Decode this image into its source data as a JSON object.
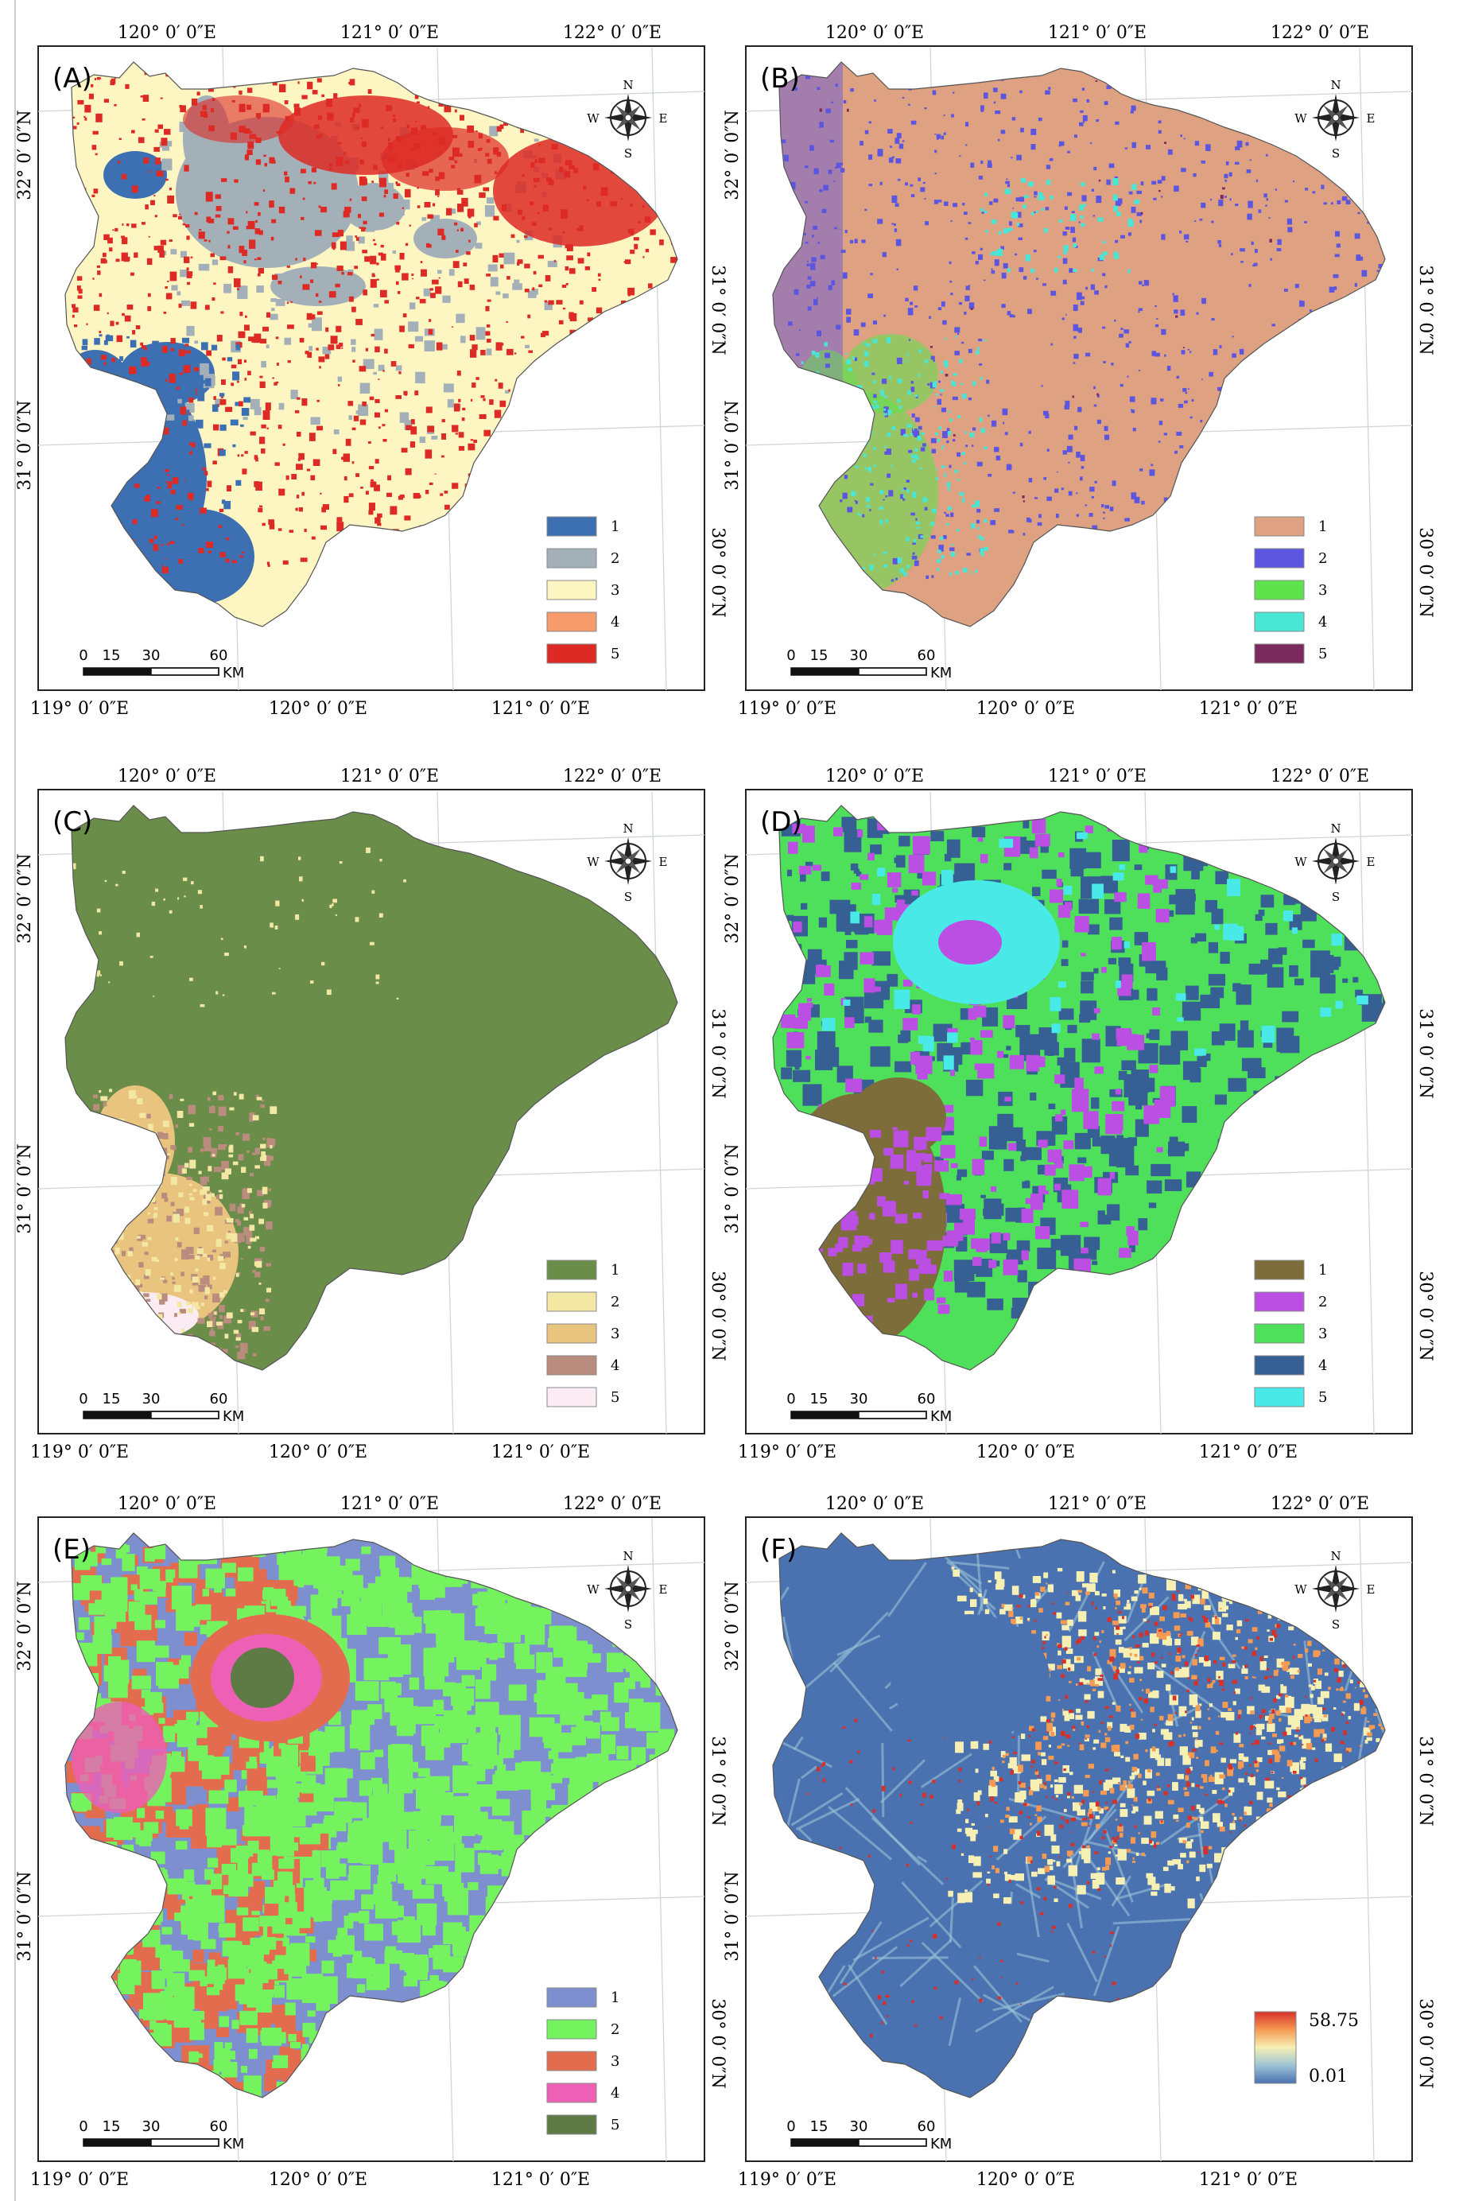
{
  "panels": [
    {
      "id": "A",
      "label": "(A)",
      "lon_top": [
        "120° 0′ 0″E",
        "121° 0′ 0″E",
        "122° 0′ 0″E"
      ],
      "lon_bottom": [
        "119° 0′ 0″E",
        "120° 0′ 0″E",
        "121° 0′ 0″E"
      ],
      "lat_left": [
        "32° 0′ 0″N",
        "31° 0′ 0″N"
      ],
      "lat_right": [
        "31° 0′ 0″N",
        "30° 0′ 0″N"
      ],
      "scale": {
        "ticks": [
          "0",
          "15",
          "30",
          "60"
        ],
        "unit": "KM"
      },
      "compass": {
        "n": "N",
        "s": "S",
        "e": "E",
        "w": "W"
      },
      "legend": {
        "items": [
          {
            "label": "1",
            "color": "#3d6fb3"
          },
          {
            "label": "2",
            "color": "#a4b0b8"
          },
          {
            "label": "3",
            "color": "#fdf6c3"
          },
          {
            "label": "4",
            "color": "#f79a6c"
          },
          {
            "label": "5",
            "color": "#dd2a24"
          }
        ]
      }
    },
    {
      "id": "B",
      "label": "(B)",
      "lon_top": [
        "120° 0′ 0″E",
        "121° 0′ 0″E",
        "122° 0′ 0″E"
      ],
      "lon_bottom": [
        "119° 0′ 0″E",
        "120° 0′ 0″E",
        "121° 0′ 0″E"
      ],
      "lat_left": [
        "32° 0′ 0″N",
        "31° 0′ 0″N"
      ],
      "lat_right": [
        "31° 0′ 0″N",
        "30° 0′ 0″N"
      ],
      "scale": {
        "ticks": [
          "0",
          "15",
          "30",
          "60"
        ],
        "unit": "KM"
      },
      "compass": {
        "n": "N",
        "s": "S",
        "e": "E",
        "w": "W"
      },
      "legend": {
        "items": [
          {
            "label": "1",
            "color": "#dea181"
          },
          {
            "label": "2",
            "color": "#5c55e0"
          },
          {
            "label": "3",
            "color": "#5ee34d"
          },
          {
            "label": "4",
            "color": "#49e6d6"
          },
          {
            "label": "5",
            "color": "#7a2a5c"
          }
        ]
      }
    },
    {
      "id": "C",
      "label": "(C)",
      "lon_top": [
        "120° 0′ 0″E",
        "121° 0′ 0″E",
        "122° 0′ 0″E"
      ],
      "lon_bottom": [
        "119° 0′ 0″E",
        "120° 0′ 0″E",
        "121° 0′ 0″E"
      ],
      "lat_left": [
        "32° 0′ 0″N",
        "31° 0′ 0″N"
      ],
      "lat_right": [
        "31° 0′ 0″N",
        "30° 0′ 0″N"
      ],
      "scale": {
        "ticks": [
          "0",
          "15",
          "30",
          "60"
        ],
        "unit": "KM"
      },
      "compass": {
        "n": "N",
        "s": "S",
        "e": "E",
        "w": "W"
      },
      "legend": {
        "items": [
          {
            "label": "1",
            "color": "#6a8d4a"
          },
          {
            "label": "2",
            "color": "#f3e7a4"
          },
          {
            "label": "3",
            "color": "#e9c47f"
          },
          {
            "label": "4",
            "color": "#b98c7d"
          },
          {
            "label": "5",
            "color": "#fbecf4"
          }
        ]
      }
    },
    {
      "id": "D",
      "label": "(D)",
      "lon_top": [
        "120° 0′ 0″E",
        "121° 0′ 0″E",
        "122° 0′ 0″E"
      ],
      "lon_bottom": [
        "119° 0′ 0″E",
        "120° 0′ 0″E",
        "121° 0′ 0″E"
      ],
      "lat_left": [
        "32° 0′ 0″N",
        "31° 0′ 0″N"
      ],
      "lat_right": [
        "31° 0′ 0″N",
        "30° 0′ 0″N"
      ],
      "scale": {
        "ticks": [
          "0",
          "15",
          "30",
          "60"
        ],
        "unit": "KM"
      },
      "compass": {
        "n": "N",
        "s": "S",
        "e": "E",
        "w": "W"
      },
      "legend": {
        "items": [
          {
            "label": "1",
            "color": "#7c6d3a"
          },
          {
            "label": "2",
            "color": "#bb4fe3"
          },
          {
            "label": "3",
            "color": "#4ee05a"
          },
          {
            "label": "4",
            "color": "#365f94"
          },
          {
            "label": "5",
            "color": "#49e9e8"
          }
        ]
      }
    },
    {
      "id": "E",
      "label": "(E)",
      "lon_top": [
        "120° 0′ 0″E",
        "121° 0′ 0″E",
        "122° 0′ 0″E"
      ],
      "lon_bottom": [
        "119° 0′ 0″E",
        "120° 0′ 0″E",
        "121° 0′ 0″E"
      ],
      "lat_left": [
        "32° 0′ 0″N",
        "31° 0′ 0″N"
      ],
      "lat_right": [
        "31° 0′ 0″N",
        "30° 0′ 0″N"
      ],
      "scale": {
        "ticks": [
          "0",
          "15",
          "30",
          "60"
        ],
        "unit": "KM"
      },
      "compass": {
        "n": "N",
        "s": "S",
        "e": "E",
        "w": "W"
      },
      "legend": {
        "items": [
          {
            "label": "1",
            "color": "#7e8fd0"
          },
          {
            "label": "2",
            "color": "#74f35e"
          },
          {
            "label": "3",
            "color": "#e36c4f"
          },
          {
            "label": "4",
            "color": "#ee5fb6"
          },
          {
            "label": "5",
            "color": "#5e7a45"
          }
        ]
      }
    },
    {
      "id": "F",
      "label": "(F)",
      "lon_top": [
        "120° 0′ 0″E",
        "121° 0′ 0″E",
        "122° 0′ 0″E"
      ],
      "lon_bottom": [
        "119° 0′ 0″E",
        "120° 0′ 0″E",
        "121° 0′ 0″E"
      ],
      "lat_left": [
        "32° 0′ 0″N",
        "31° 0′ 0″N"
      ],
      "lat_right": [
        "31° 0′ 0″N",
        "30° 0′ 0″N"
      ],
      "scale": {
        "ticks": [
          "0",
          "15",
          "30",
          "60"
        ],
        "unit": "KM"
      },
      "compass": {
        "n": "N",
        "s": "S",
        "e": "E",
        "w": "W"
      },
      "colorbar": {
        "max": "58.75",
        "min": "0.01",
        "colors": [
          "#4a72b0",
          "#9cc3d6",
          "#f6f0b4",
          "#f59a52",
          "#d7302a"
        ]
      }
    }
  ]
}
